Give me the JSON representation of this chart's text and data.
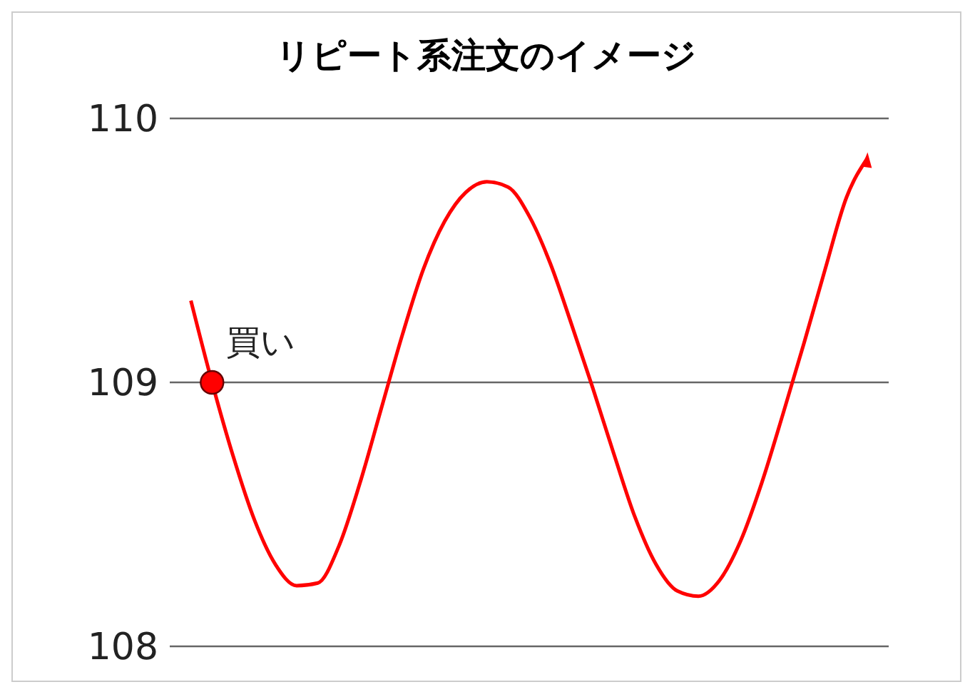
{
  "chart_data": {
    "type": "line",
    "title": "リピート系注文のイメージ",
    "categories": [
      null,
      null,
      null,
      null,
      null,
      null,
      null,
      null,
      null,
      null,
      null,
      null,
      null,
      null,
      null,
      null,
      null,
      null,
      null,
      null,
      null,
      null,
      null,
      null,
      null,
      null,
      null,
      null,
      null,
      null,
      null,
      null,
      null
    ],
    "series": [
      {
        "color": "#ff0000",
        "values": [
          109.31,
          109.0,
          108.72,
          108.48,
          108.31,
          108.23,
          108.24,
          108.38,
          108.62,
          108.9,
          109.18,
          109.43,
          109.61,
          109.72,
          109.76,
          109.74,
          109.63,
          109.45,
          109.22,
          108.98,
          108.73,
          108.49,
          108.31,
          108.21,
          108.19,
          108.25,
          108.4,
          108.62,
          108.88,
          109.15,
          109.43,
          109.7,
          109.85
        ]
      },
      {
        "type": "scatter",
        "color": "#ff0000",
        "values": [
          null,
          109.0,
          null,
          null,
          null,
          null,
          null,
          null,
          null,
          null,
          null,
          null,
          null,
          null,
          null,
          null,
          null,
          null,
          null,
          null,
          null,
          null,
          null,
          null,
          null,
          null,
          null,
          null,
          null,
          null,
          null,
          null,
          null
        ]
      }
    ],
    "annotations": [
      "買い"
    ],
    "ylim": [
      108,
      110
    ],
    "yticks": [
      108,
      109,
      110
    ],
    "grid": "y"
  }
}
